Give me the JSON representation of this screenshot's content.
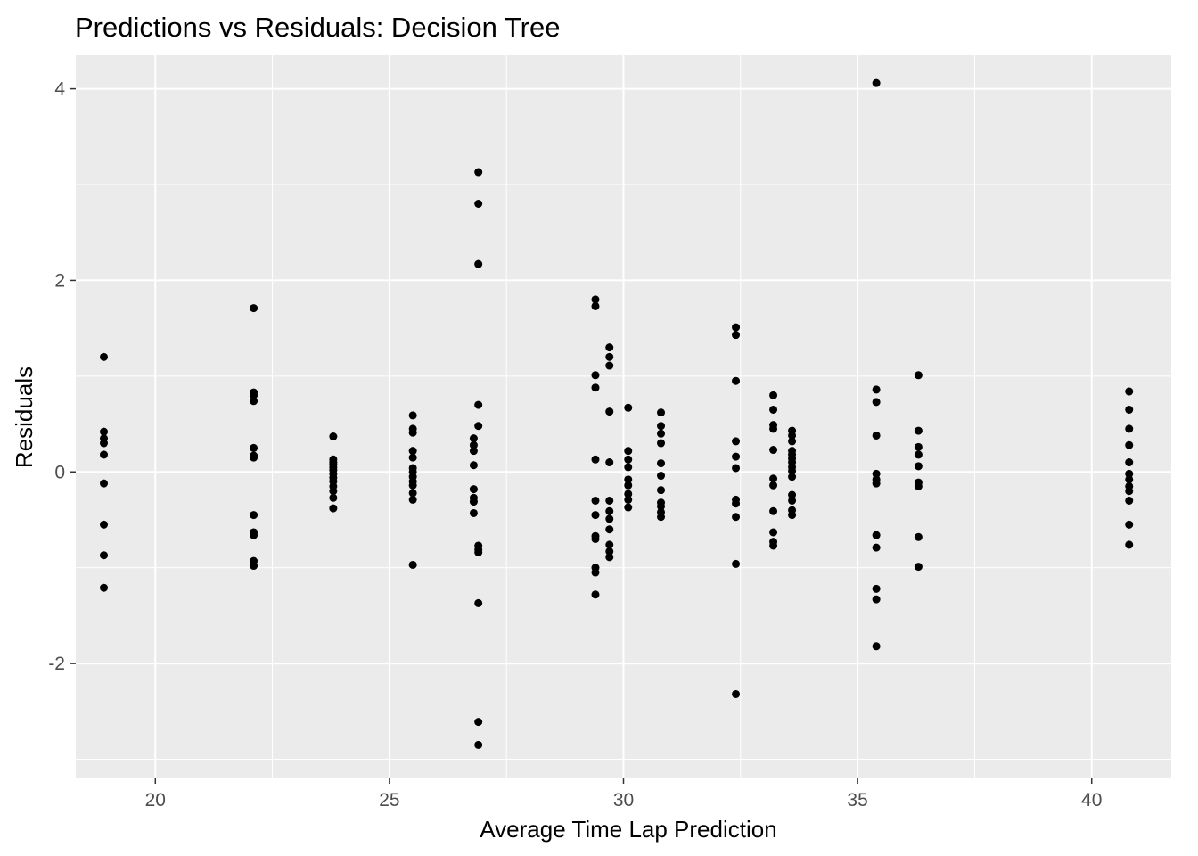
{
  "chart_data": {
    "type": "scatter",
    "title": "Predictions vs Residuals: Decision Tree",
    "xlabel": "Average Time Lap Prediction",
    "ylabel": "Residuals",
    "xlim": [
      18.3,
      41.7
    ],
    "ylim": [
      -3.2,
      4.35
    ],
    "x_ticks": [
      20,
      25,
      30,
      35,
      40
    ],
    "x_tick_labels": [
      "20",
      "25",
      "30",
      "35",
      "40"
    ],
    "y_ticks": [
      -2,
      0,
      2,
      4
    ],
    "y_tick_labels": [
      "-2",
      "0",
      "2",
      "4"
    ],
    "grid": true,
    "legend": "none",
    "colors": {
      "panel": "#ebebeb",
      "grid": "#ffffff",
      "point": "#000000",
      "tick": "#333333"
    },
    "points": [
      [
        18.9,
        1.2
      ],
      [
        18.9,
        0.42
      ],
      [
        18.9,
        0.35
      ],
      [
        18.9,
        0.3
      ],
      [
        18.9,
        0.18
      ],
      [
        18.9,
        -0.12
      ],
      [
        18.9,
        -0.55
      ],
      [
        18.9,
        -0.87
      ],
      [
        18.9,
        -1.21
      ],
      [
        22.1,
        1.71
      ],
      [
        22.1,
        0.83
      ],
      [
        22.1,
        0.8
      ],
      [
        22.1,
        0.74
      ],
      [
        22.1,
        0.25
      ],
      [
        22.1,
        0.17
      ],
      [
        22.1,
        0.15
      ],
      [
        22.1,
        -0.45
      ],
      [
        22.1,
        -0.63
      ],
      [
        22.1,
        -0.66
      ],
      [
        22.1,
        -0.93
      ],
      [
        22.1,
        -0.98
      ],
      [
        23.8,
        0.37
      ],
      [
        23.8,
        0.13
      ],
      [
        23.8,
        0.1
      ],
      [
        23.8,
        0.08
      ],
      [
        23.8,
        0.05
      ],
      [
        23.8,
        0.02
      ],
      [
        23.8,
        -0.02
      ],
      [
        23.8,
        -0.06
      ],
      [
        23.8,
        -0.1
      ],
      [
        23.8,
        -0.15
      ],
      [
        23.8,
        -0.2
      ],
      [
        23.8,
        -0.27
      ],
      [
        23.8,
        -0.38
      ],
      [
        25.5,
        0.59
      ],
      [
        25.5,
        0.45
      ],
      [
        25.5,
        0.41
      ],
      [
        25.5,
        0.22
      ],
      [
        25.5,
        0.15
      ],
      [
        25.5,
        0.04
      ],
      [
        25.5,
        0.0
      ],
      [
        25.5,
        -0.05
      ],
      [
        25.5,
        -0.1
      ],
      [
        25.5,
        -0.14
      ],
      [
        25.5,
        -0.22
      ],
      [
        25.5,
        -0.29
      ],
      [
        25.5,
        -0.97
      ],
      [
        26.8,
        0.35
      ],
      [
        26.8,
        0.28
      ],
      [
        26.8,
        0.22
      ],
      [
        26.8,
        0.07
      ],
      [
        26.8,
        -0.18
      ],
      [
        26.8,
        -0.27
      ],
      [
        26.8,
        -0.31
      ],
      [
        26.8,
        -0.43
      ],
      [
        26.9,
        3.13
      ],
      [
        26.9,
        2.8
      ],
      [
        26.9,
        2.17
      ],
      [
        26.9,
        0.7
      ],
      [
        26.9,
        0.48
      ],
      [
        26.9,
        -0.77
      ],
      [
        26.9,
        -0.81
      ],
      [
        26.9,
        -0.84
      ],
      [
        26.9,
        -1.37
      ],
      [
        26.9,
        -2.61
      ],
      [
        26.9,
        -2.85
      ],
      [
        29.4,
        1.8
      ],
      [
        29.4,
        1.73
      ],
      [
        29.4,
        1.01
      ],
      [
        29.4,
        0.88
      ],
      [
        29.4,
        0.13
      ],
      [
        29.4,
        -0.3
      ],
      [
        29.4,
        -0.45
      ],
      [
        29.4,
        -0.67
      ],
      [
        29.4,
        -0.7
      ],
      [
        29.4,
        -1.0
      ],
      [
        29.4,
        -1.05
      ],
      [
        29.4,
        -1.28
      ],
      [
        29.7,
        1.3
      ],
      [
        29.7,
        1.2
      ],
      [
        29.7,
        1.11
      ],
      [
        29.7,
        0.63
      ],
      [
        29.7,
        0.1
      ],
      [
        29.7,
        -0.3
      ],
      [
        29.7,
        -0.41
      ],
      [
        29.7,
        -0.49
      ],
      [
        29.7,
        -0.6
      ],
      [
        29.7,
        -0.76
      ],
      [
        29.7,
        -0.83
      ],
      [
        29.7,
        -0.89
      ],
      [
        30.1,
        0.67
      ],
      [
        30.1,
        0.22
      ],
      [
        30.1,
        0.13
      ],
      [
        30.1,
        0.05
      ],
      [
        30.1,
        -0.08
      ],
      [
        30.1,
        -0.14
      ],
      [
        30.1,
        -0.23
      ],
      [
        30.1,
        -0.29
      ],
      [
        30.1,
        -0.37
      ],
      [
        30.8,
        0.62
      ],
      [
        30.8,
        0.48
      ],
      [
        30.8,
        0.4
      ],
      [
        30.8,
        0.3
      ],
      [
        30.8,
        0.09
      ],
      [
        30.8,
        -0.04
      ],
      [
        30.8,
        -0.19
      ],
      [
        30.8,
        -0.32
      ],
      [
        30.8,
        -0.36
      ],
      [
        30.8,
        -0.42
      ],
      [
        30.8,
        -0.47
      ],
      [
        32.4,
        1.51
      ],
      [
        32.4,
        1.43
      ],
      [
        32.4,
        0.95
      ],
      [
        32.4,
        0.32
      ],
      [
        32.4,
        0.16
      ],
      [
        32.4,
        0.04
      ],
      [
        32.4,
        -0.29
      ],
      [
        32.4,
        -0.33
      ],
      [
        32.4,
        -0.47
      ],
      [
        32.4,
        -0.96
      ],
      [
        32.4,
        -2.32
      ],
      [
        33.2,
        0.8
      ],
      [
        33.2,
        0.65
      ],
      [
        33.2,
        0.49
      ],
      [
        33.2,
        0.45
      ],
      [
        33.2,
        0.23
      ],
      [
        33.2,
        -0.07
      ],
      [
        33.2,
        -0.14
      ],
      [
        33.2,
        -0.41
      ],
      [
        33.2,
        -0.63
      ],
      [
        33.2,
        -0.73
      ],
      [
        33.2,
        -0.77
      ],
      [
        33.6,
        0.43
      ],
      [
        33.6,
        0.38
      ],
      [
        33.6,
        0.32
      ],
      [
        33.6,
        0.22
      ],
      [
        33.6,
        0.18
      ],
      [
        33.6,
        0.14
      ],
      [
        33.6,
        0.1
      ],
      [
        33.6,
        0.05
      ],
      [
        33.6,
        0.01
      ],
      [
        33.6,
        -0.05
      ],
      [
        33.6,
        -0.24
      ],
      [
        33.6,
        -0.3
      ],
      [
        33.6,
        -0.4
      ],
      [
        33.6,
        -0.45
      ],
      [
        35.4,
        4.06
      ],
      [
        35.4,
        0.86
      ],
      [
        35.4,
        0.73
      ],
      [
        35.4,
        0.38
      ],
      [
        35.4,
        -0.02
      ],
      [
        35.4,
        -0.08
      ],
      [
        35.4,
        -0.12
      ],
      [
        35.4,
        -0.66
      ],
      [
        35.4,
        -0.79
      ],
      [
        35.4,
        -1.22
      ],
      [
        35.4,
        -1.33
      ],
      [
        35.4,
        -1.82
      ],
      [
        36.3,
        1.01
      ],
      [
        36.3,
        0.43
      ],
      [
        36.3,
        0.26
      ],
      [
        36.3,
        0.18
      ],
      [
        36.3,
        0.06
      ],
      [
        36.3,
        -0.11
      ],
      [
        36.3,
        -0.15
      ],
      [
        36.3,
        -0.68
      ],
      [
        36.3,
        -0.99
      ],
      [
        40.8,
        0.84
      ],
      [
        40.8,
        0.65
      ],
      [
        40.8,
        0.45
      ],
      [
        40.8,
        0.28
      ],
      [
        40.8,
        0.1
      ],
      [
        40.8,
        -0.02
      ],
      [
        40.8,
        -0.08
      ],
      [
        40.8,
        -0.15
      ],
      [
        40.8,
        -0.2
      ],
      [
        40.8,
        -0.3
      ],
      [
        40.8,
        -0.55
      ],
      [
        40.8,
        -0.76
      ]
    ]
  }
}
